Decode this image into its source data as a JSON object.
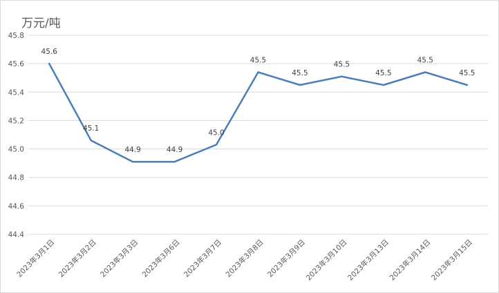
{
  "chart_data": {
    "type": "line",
    "unit_label": "万元/吨",
    "categories": [
      "2023年3月1日",
      "2023年3月2日",
      "2023年3月3日",
      "2023年3月6日",
      "2023年3月7日",
      "2023年3月8日",
      "2023年3月9日",
      "2023年3月10日",
      "2023年3月13日",
      "2023年3月14日",
      "2023年3月15日"
    ],
    "values": [
      45.6,
      45.06,
      44.91,
      44.91,
      45.03,
      45.54,
      45.45,
      45.51,
      45.45,
      45.54,
      45.45
    ],
    "data_labels": [
      "45.6",
      "45.1",
      "44.9",
      "44.9",
      "45.0",
      "45.5",
      "45.5",
      "45.5",
      "45.5",
      "45.5",
      "45.5"
    ],
    "y_ticks": [
      "45.8",
      "45.6",
      "45.4",
      "45.2",
      "45.0",
      "44.8",
      "44.6",
      "44.4"
    ],
    "ylim": [
      44.4,
      45.8
    ],
    "grid": true,
    "legend": "none",
    "line_color": "#4a7ebb"
  }
}
